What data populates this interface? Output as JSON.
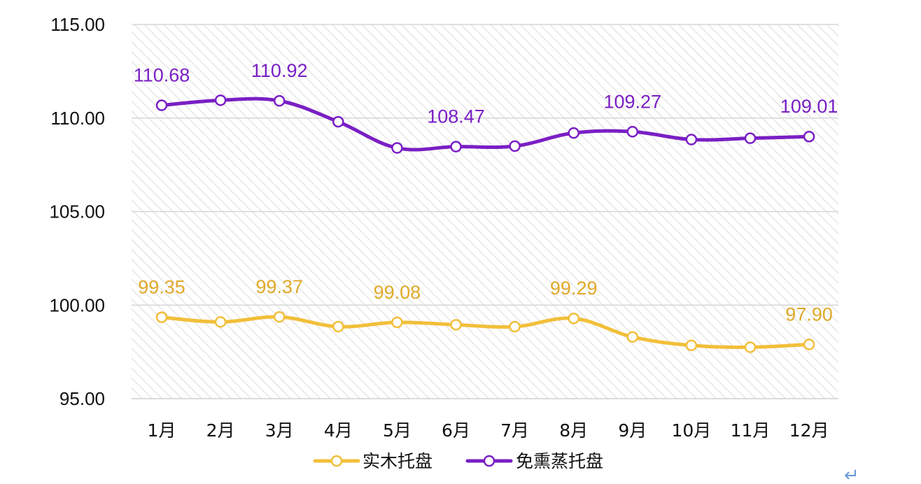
{
  "chart_data": {
    "type": "line",
    "title": "",
    "xlabel": "",
    "ylabel": "",
    "categories": [
      "1月",
      "2月",
      "3月",
      "4月",
      "5月",
      "6月",
      "7月",
      "8月",
      "9月",
      "10月",
      "11月",
      "12月"
    ],
    "ylim": [
      95,
      115
    ],
    "yticks": [
      "95.00",
      "100.00",
      "105.00",
      "110.00",
      "115.00"
    ],
    "grid": true,
    "legend_position": "bottom",
    "series": [
      {
        "name": "实木托盘",
        "color": "#F2BF3A",
        "label_color": "#E0A92A",
        "values": [
          99.35,
          99.1,
          99.37,
          98.85,
          99.08,
          98.95,
          98.85,
          99.29,
          98.3,
          97.85,
          97.75,
          97.9
        ],
        "labels": [
          "99.35",
          "",
          "99.37",
          "",
          "99.08",
          "",
          "",
          "99.29",
          "",
          "",
          "",
          "97.90"
        ]
      },
      {
        "name": "免熏蒸托盘",
        "color": "#7A1FC4",
        "label_color": "#7A1FC4",
        "values": [
          110.68,
          110.95,
          110.92,
          109.8,
          108.4,
          108.47,
          108.5,
          109.2,
          109.27,
          108.85,
          108.92,
          109.01
        ],
        "labels": [
          "110.68",
          "",
          "110.92",
          "",
          "",
          "108.47",
          "",
          "",
          "109.27",
          "",
          "",
          "109.01"
        ]
      }
    ],
    "return_mark": "↵"
  }
}
